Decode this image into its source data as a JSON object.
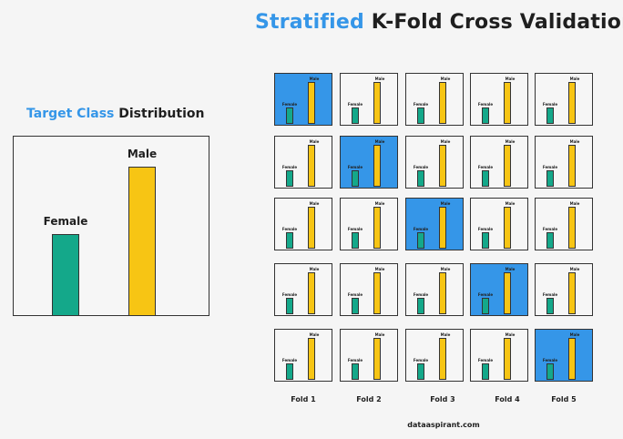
{
  "title": {
    "highlight": "Stratified",
    "rest": "K-Fold Cross Validation"
  },
  "distribution": {
    "title_highlight": "Target Class",
    "title_rest": "Distribution",
    "classes": [
      {
        "label": "Female",
        "value": 0.55
      },
      {
        "label": "Male",
        "value": 1.0
      }
    ]
  },
  "grid": {
    "rows": 5,
    "cols": 5,
    "folds": [
      "Fold 1",
      "Fold 2",
      "Fold 3",
      "Fold 4",
      "Fold 5"
    ],
    "active_cells": [
      [
        0,
        0
      ],
      [
        1,
        1
      ],
      [
        2,
        2
      ],
      [
        3,
        3
      ],
      [
        4,
        4
      ]
    ],
    "mini_female_label": "Female",
    "mini_male_label": "Male",
    "mini_female_value": 0.42,
    "mini_male_value": 1.0
  },
  "colors": {
    "accent": "#3596e8",
    "female": "#14a88a",
    "male": "#f7c514"
  },
  "credit": "dataaspirant.com"
}
